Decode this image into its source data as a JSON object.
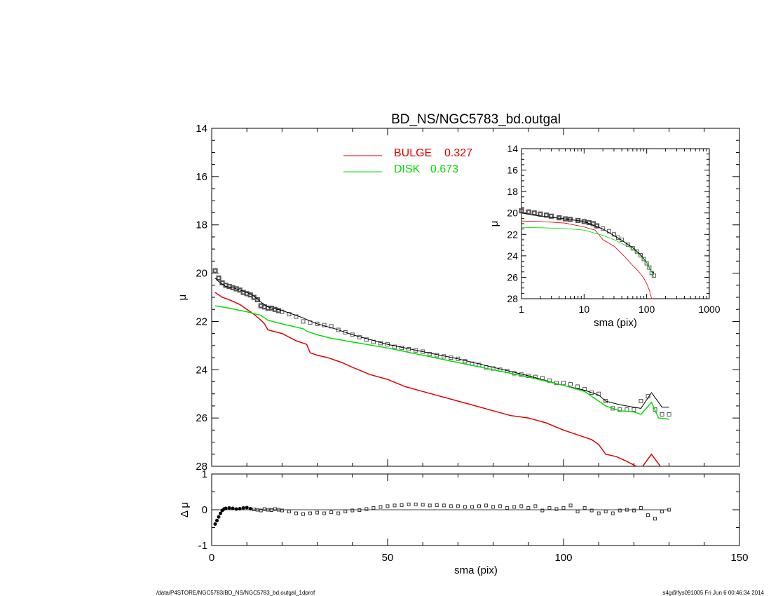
{
  "chart_data": [
    {
      "id": "main",
      "type": "line",
      "title": "BD_NS/NGC5783_bd.outgal",
      "xlabel": "",
      "ylabel": "μ",
      "xlim": [
        0,
        150
      ],
      "ylim": [
        28,
        14
      ],
      "yticks": [
        14,
        16,
        18,
        20,
        22,
        24,
        26,
        28
      ],
      "grid": false,
      "legend": {
        "placement": "top-center",
        "entries": [
          {
            "label": "BULGE",
            "value": "0.327",
            "color": "#e00000"
          },
          {
            "label": "DISK",
            "value": "0.673",
            "color": "#00dd00"
          }
        ]
      },
      "series": [
        {
          "name": "data",
          "kind": "scatter-square",
          "color": "#555555",
          "x": [
            1,
            2,
            3,
            4,
            5,
            6,
            7,
            8,
            9,
            10,
            11,
            12,
            13,
            14,
            15,
            16,
            17,
            18,
            19,
            20,
            22,
            24,
            26,
            28,
            30,
            32,
            34,
            36,
            38,
            40,
            42,
            44,
            46,
            48,
            50,
            52,
            54,
            56,
            58,
            60,
            62,
            64,
            66,
            68,
            70,
            72,
            74,
            76,
            78,
            80,
            82,
            84,
            86,
            88,
            90,
            92,
            94,
            96,
            98,
            100,
            102,
            104,
            106,
            108,
            110,
            112,
            114,
            116,
            118,
            120,
            122,
            124,
            126,
            128,
            130
          ],
          "y": [
            19.9,
            20.2,
            20.4,
            20.5,
            20.55,
            20.6,
            20.65,
            20.7,
            20.8,
            20.85,
            20.9,
            21.0,
            21.1,
            21.35,
            21.4,
            21.45,
            21.45,
            21.5,
            21.55,
            21.6,
            21.7,
            21.8,
            22.0,
            22.05,
            22.1,
            22.15,
            22.2,
            22.35,
            22.45,
            22.55,
            22.65,
            22.75,
            22.85,
            22.9,
            22.95,
            23.05,
            23.1,
            23.15,
            23.2,
            23.25,
            23.35,
            23.4,
            23.45,
            23.5,
            23.55,
            23.65,
            23.75,
            23.8,
            23.9,
            23.95,
            24.0,
            24.05,
            24.15,
            24.2,
            24.25,
            24.3,
            24.35,
            24.45,
            24.55,
            24.55,
            24.6,
            24.7,
            24.8,
            24.95,
            25.0,
            25.3,
            25.6,
            25.65,
            25.65,
            25.65,
            25.3,
            25.1,
            25.65,
            25.85,
            25.85
          ]
        },
        {
          "name": "model",
          "kind": "line",
          "color": "#000000",
          "x": [
            1,
            2,
            4,
            6,
            8,
            10,
            12,
            14,
            16,
            20,
            25,
            30,
            35,
            40,
            50,
            60,
            70,
            80,
            90,
            100,
            106,
            110,
            112,
            116,
            120,
            122,
            125,
            128,
            130
          ],
          "y": [
            20.2,
            20.35,
            20.55,
            20.6,
            20.7,
            20.8,
            20.95,
            21.2,
            21.4,
            21.55,
            21.8,
            22.1,
            22.3,
            22.55,
            22.95,
            23.25,
            23.55,
            23.9,
            24.25,
            24.65,
            24.85,
            25.05,
            25.3,
            25.45,
            25.55,
            25.6,
            24.95,
            25.55,
            25.55
          ]
        },
        {
          "name": "BULGE",
          "kind": "line",
          "color": "#e00000",
          "x": [
            1,
            3,
            5,
            8,
            10,
            12,
            14,
            15,
            16,
            20,
            24,
            27,
            28,
            30,
            33,
            35,
            37,
            40,
            45,
            50,
            55,
            60,
            65,
            70,
            75,
            80,
            85,
            90,
            95,
            100,
            104,
            108,
            110,
            112,
            115,
            118,
            122,
            125,
            128
          ],
          "y": [
            20.8,
            21.0,
            21.1,
            21.3,
            21.5,
            21.7,
            21.95,
            22.1,
            22.35,
            22.5,
            22.8,
            22.95,
            23.3,
            23.4,
            23.5,
            23.6,
            23.7,
            23.9,
            24.2,
            24.4,
            24.7,
            24.9,
            25.1,
            25.3,
            25.5,
            25.7,
            25.9,
            26.0,
            26.2,
            26.5,
            26.7,
            26.9,
            27.1,
            27.5,
            27.6,
            27.8,
            28.1,
            27.5,
            28.1
          ]
        },
        {
          "name": "DISK",
          "kind": "line",
          "color": "#00dd00",
          "x": [
            1,
            5,
            10,
            14,
            16,
            20,
            26,
            27,
            30,
            34,
            40,
            50,
            60,
            70,
            80,
            90,
            100,
            106,
            108,
            110,
            112,
            114,
            116,
            120,
            122,
            125,
            127,
            130
          ],
          "y": [
            21.35,
            21.45,
            21.6,
            21.75,
            21.95,
            22.1,
            22.3,
            22.4,
            22.55,
            22.7,
            22.85,
            23.1,
            23.4,
            23.7,
            24.0,
            24.3,
            24.65,
            24.9,
            25.1,
            25.3,
            25.5,
            25.6,
            25.7,
            25.75,
            25.85,
            25.35,
            26.0,
            26.05
          ]
        }
      ]
    },
    {
      "id": "residual",
      "type": "scatter",
      "title": "",
      "xlabel": "sma (pix)",
      "ylabel": "Δ μ",
      "xlim": [
        0,
        150
      ],
      "ylim": [
        -1,
        1
      ],
      "xticks": [
        0,
        50,
        100,
        150
      ],
      "yticks": [
        -1,
        0,
        1
      ],
      "series": [
        {
          "name": "residual",
          "color": "#333333",
          "x": [
            1,
            1.5,
            2,
            2.5,
            3,
            3.5,
            4,
            5,
            6,
            7,
            8,
            9,
            10,
            11,
            12,
            13,
            14,
            15,
            16,
            17,
            18,
            19,
            20,
            22,
            24,
            26,
            28,
            30,
            32,
            34,
            36,
            38,
            40,
            42,
            44,
            46,
            48,
            50,
            52,
            54,
            56,
            58,
            60,
            62,
            64,
            66,
            68,
            70,
            72,
            74,
            76,
            78,
            80,
            82,
            84,
            86,
            88,
            90,
            92,
            94,
            96,
            98,
            100,
            102,
            104,
            106,
            108,
            110,
            112,
            114,
            116,
            118,
            120,
            122,
            124,
            126,
            128,
            130
          ],
          "y": [
            -0.4,
            -0.3,
            -0.2,
            -0.1,
            -0.02,
            0.02,
            0.04,
            0.05,
            0.04,
            0.02,
            0.03,
            0.05,
            0.06,
            0.03,
            0.01,
            0.0,
            -0.02,
            0.02,
            0.0,
            -0.01,
            0.02,
            0.0,
            -0.02,
            -0.05,
            -0.1,
            -0.12,
            -0.1,
            -0.08,
            -0.1,
            -0.07,
            -0.1,
            -0.05,
            -0.02,
            -0.01,
            0.02,
            0.05,
            0.08,
            0.1,
            0.12,
            0.13,
            0.15,
            0.15,
            0.14,
            0.12,
            0.13,
            0.12,
            0.1,
            0.1,
            0.08,
            0.08,
            0.1,
            0.12,
            0.08,
            0.1,
            0.05,
            0.08,
            0.1,
            0.05,
            0.1,
            -0.02,
            0.05,
            0.02,
            0.05,
            0.12,
            -0.05,
            0.05,
            -0.02,
            -0.1,
            -0.05,
            -0.1,
            -0.02,
            0.0,
            -0.02,
            0.05,
            -0.15,
            -0.25,
            -0.05,
            0.0
          ]
        }
      ]
    },
    {
      "id": "inset",
      "type": "line",
      "title": "",
      "xlabel": "sma (pix)",
      "ylabel": "μ",
      "xscale": "log",
      "xlim": [
        1,
        1000
      ],
      "ylim": [
        28,
        14
      ],
      "xticks": [
        1,
        10,
        100,
        1000
      ],
      "yticks": [
        14,
        16,
        18,
        20,
        22,
        24,
        26,
        28
      ],
      "series": [
        {
          "name": "data",
          "kind": "scatter-square",
          "color": "#555555",
          "x": [
            1,
            1.3,
            1.6,
            2,
            2.5,
            3,
            4,
            5,
            6,
            8,
            10,
            12,
            14,
            16,
            20,
            25,
            30,
            35,
            40,
            50,
            60,
            70,
            80,
            90,
            100,
            110,
            120,
            130
          ],
          "y": [
            19.8,
            19.9,
            20.0,
            20.1,
            20.2,
            20.3,
            20.45,
            20.55,
            20.6,
            20.7,
            20.8,
            20.9,
            21.0,
            21.2,
            21.45,
            21.7,
            22.0,
            22.3,
            22.5,
            22.95,
            23.3,
            23.6,
            23.95,
            24.3,
            24.7,
            25.1,
            25.6,
            25.85
          ]
        },
        {
          "name": "model",
          "kind": "line",
          "color": "#000000",
          "x": [
            1,
            2,
            5,
            10,
            20,
            40,
            60,
            80,
            100,
            120,
            130
          ],
          "y": [
            20.0,
            20.3,
            20.55,
            20.8,
            21.5,
            22.55,
            23.25,
            23.9,
            24.65,
            25.5,
            25.55
          ]
        },
        {
          "name": "BULGE",
          "kind": "line",
          "color": "#e00000",
          "x": [
            1,
            2,
            5,
            10,
            15,
            20,
            30,
            40,
            50,
            60,
            70,
            80,
            90,
            100,
            110,
            120,
            125
          ],
          "y": [
            20.75,
            20.8,
            20.95,
            21.3,
            21.6,
            22.5,
            23.1,
            23.8,
            24.4,
            24.9,
            25.3,
            25.7,
            26.1,
            26.6,
            27.2,
            28.0,
            28.0
          ]
        },
        {
          "name": "DISK",
          "kind": "line",
          "color": "#00dd00",
          "x": [
            1,
            2,
            5,
            10,
            20,
            30,
            40,
            50,
            60,
            80,
            100,
            120,
            130
          ],
          "y": [
            21.35,
            21.38,
            21.45,
            21.6,
            22.1,
            22.5,
            22.85,
            23.1,
            23.4,
            24.0,
            24.65,
            25.5,
            26.05
          ]
        }
      ]
    }
  ],
  "footer": {
    "left": "/data/P4STORE/NGC5783/BD_NS/NGC5783_bd.outgal_1dprof",
    "right": "s4g@fys091005  Fri Jun  6 00:46:34 2014"
  }
}
